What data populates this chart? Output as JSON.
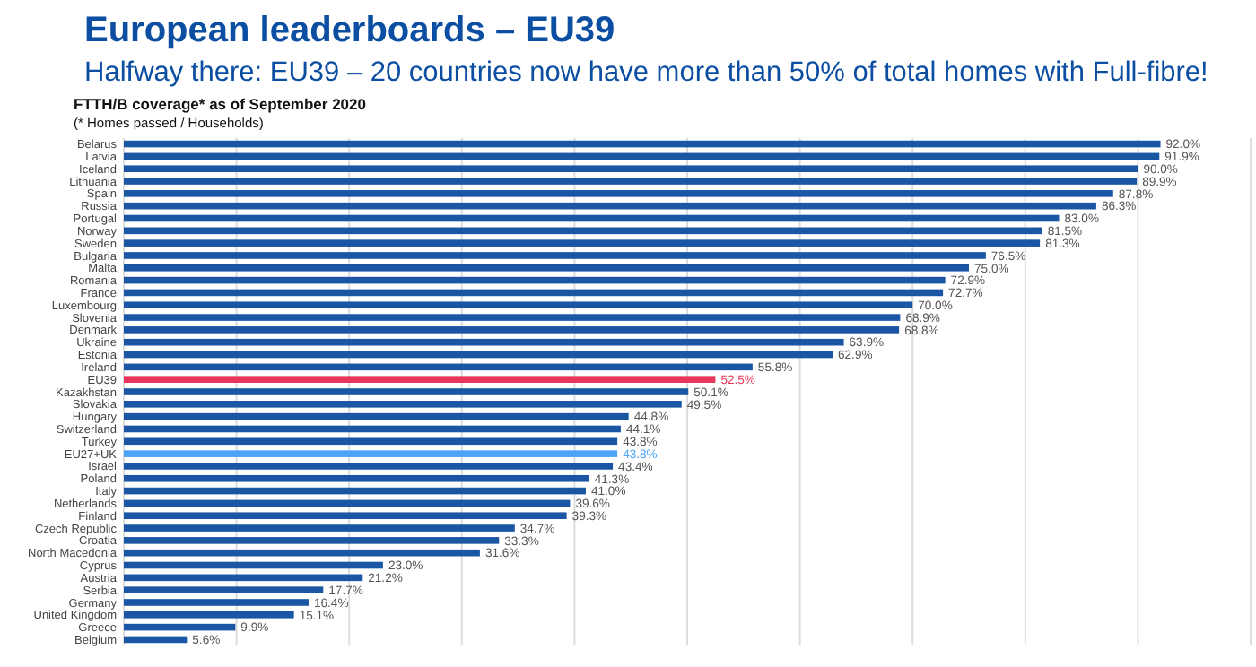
{
  "chart_data": {
    "type": "bar",
    "orientation": "horizontal",
    "title": "European leaderboards – EU39",
    "subtitle": "Halfway there: EU39 – 20 countries now have more than 50% of total homes with Full-fibre!",
    "annotations": [
      "FTTH/B coverage* as of September 2020",
      "(* Homes passed / Households)"
    ],
    "categories": [
      "Belarus",
      "Latvia",
      "Iceland",
      "Lithuania",
      "Spain",
      "Russia",
      "Portugal",
      "Norway",
      "Sweden",
      "Bulgaria",
      "Malta",
      "Romania",
      "France",
      "Luxembourg",
      "Slovenia",
      "Denmark",
      "Ukraine",
      "Estonia",
      "Ireland",
      "EU39",
      "Kazakhstan",
      "Slovakia",
      "Hungary",
      "Switzerland",
      "Turkey",
      "EU27+UK",
      "Israel",
      "Poland",
      "Italy",
      "Netherlands",
      "Finland",
      "Czech Republic",
      "Croatia",
      "North Macedonia",
      "Cyprus",
      "Austria",
      "Serbia",
      "Germany",
      "United Kingdom",
      "Greece",
      "Belgium"
    ],
    "values": [
      92.0,
      91.9,
      90.0,
      89.9,
      87.8,
      86.3,
      83.0,
      81.5,
      81.3,
      76.5,
      75.0,
      72.9,
      72.7,
      70.0,
      68.9,
      68.8,
      63.9,
      62.9,
      55.8,
      52.5,
      50.1,
      49.5,
      44.8,
      44.1,
      43.8,
      43.8,
      43.4,
      41.3,
      41.0,
      39.6,
      39.3,
      34.7,
      33.3,
      31.6,
      23.0,
      21.2,
      17.7,
      16.4,
      15.1,
      9.9,
      5.6
    ],
    "value_labels": [
      "92.0%",
      "91.9%",
      "90.0%",
      "89.9%",
      "87.8%",
      "86.3%",
      "83.0%",
      "81.5%",
      "81.3%",
      "76.5%",
      "75.0%",
      "72.9%",
      "72.7%",
      "70.0%",
      "68.9%",
      "68.8%",
      "63.9%",
      "62.9%",
      "55.8%",
      "52.5%",
      "50.1%",
      "49.5%",
      "44.8%",
      "44.1%",
      "43.8%",
      "43.8%",
      "43.4%",
      "41.3%",
      "41.0%",
      "39.6%",
      "39.3%",
      "34.7%",
      "33.3%",
      "31.6%",
      "23.0%",
      "21.2%",
      "17.7%",
      "16.4%",
      "15.1%",
      "9.9%",
      "5.6%"
    ],
    "colors": [
      "#1a56a4",
      "#1a56a4",
      "#1a56a4",
      "#1a56a4",
      "#1a56a4",
      "#1a56a4",
      "#1a56a4",
      "#1a56a4",
      "#1a56a4",
      "#1a56a4",
      "#1a56a4",
      "#1a56a4",
      "#1a56a4",
      "#1a56a4",
      "#1a56a4",
      "#1a56a4",
      "#1a56a4",
      "#1a56a4",
      "#1a56a4",
      "#e8365a",
      "#1a56a4",
      "#1a56a4",
      "#1a56a4",
      "#1a56a4",
      "#1a56a4",
      "#4da3f5",
      "#1a56a4",
      "#1a56a4",
      "#1a56a4",
      "#1a56a4",
      "#1a56a4",
      "#1a56a4",
      "#1a56a4",
      "#1a56a4",
      "#1a56a4",
      "#1a56a4",
      "#1a56a4",
      "#1a56a4",
      "#1a56a4",
      "#1a56a4",
      "#1a56a4"
    ],
    "xlim": [
      0,
      100
    ],
    "xticks": [
      {
        "value": 0,
        "label": null
      },
      {
        "value": 10,
        "label": null
      },
      {
        "value": 20,
        "label": null
      },
      {
        "value": 30,
        "label": null
      },
      {
        "value": 40,
        "label": null
      },
      {
        "value": 50,
        "label": null
      },
      {
        "value": 60,
        "label": null
      },
      {
        "value": 70,
        "label": null
      },
      {
        "value": 80,
        "label": null
      },
      {
        "value": 90,
        "label": null
      },
      {
        "value": 100,
        "label": null
      }
    ],
    "grid": "x",
    "tick_labels": "y"
  }
}
